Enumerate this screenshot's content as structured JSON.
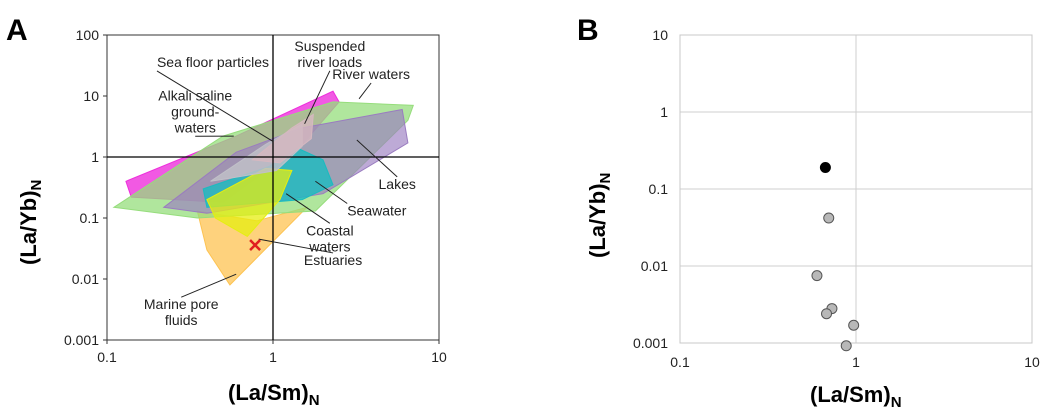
{
  "chart_data": [
    {
      "panel": "A",
      "type": "area",
      "xscale": "log",
      "yscale": "log",
      "xlim": [
        0.1,
        10
      ],
      "ylim": [
        0.001,
        100
      ],
      "xticks": [
        "0.1",
        "1",
        "10"
      ],
      "yticks": [
        "0.001",
        "0.01",
        "0.1",
        "1",
        "10",
        "100"
      ],
      "xlabel": "(La/Sm)N",
      "xlabel_main": "(La/Sm)",
      "xlabel_sub": "N",
      "ylabel": "(La/Yb)N",
      "ylabel_main": "(La/Yb)",
      "ylabel_sub": "N",
      "reference_lines": {
        "x": 1,
        "y": 1
      },
      "fields": [
        {
          "name": "Marine pore fluids",
          "color": "#fdc352",
          "opacity": 0.75,
          "points": [
            [
              0.35,
              0.13
            ],
            [
              0.8,
              0.09
            ],
            [
              1.6,
              0.15
            ],
            [
              0.55,
              0.008
            ],
            [
              0.4,
              0.03
            ]
          ]
        },
        {
          "name": "Alkali saline groundwaters",
          "color": "#ee2fdc",
          "opacity": 0.8,
          "points": [
            [
              0.13,
              0.4
            ],
            [
              0.6,
              2.2
            ],
            [
              2.3,
              12
            ],
            [
              2.5,
              8
            ],
            [
              1.5,
              1.6
            ],
            [
              0.5,
              0.18
            ],
            [
              0.14,
              0.22
            ]
          ]
        },
        {
          "name": "River waters",
          "color": "#96dd7c",
          "opacity": 0.75,
          "points": [
            [
              0.11,
              0.15
            ],
            [
              0.5,
              2.2
            ],
            [
              2.3,
              8
            ],
            [
              7,
              7
            ],
            [
              6.5,
              4
            ],
            [
              1.8,
              0.13
            ],
            [
              0.35,
              0.1
            ]
          ]
        },
        {
          "name": "Lakes",
          "color": "#9a7cc0",
          "opacity": 0.65,
          "points": [
            [
              0.22,
              0.15
            ],
            [
              0.6,
              1.2
            ],
            [
              1.5,
              3
            ],
            [
              6,
              6
            ],
            [
              6.5,
              1.7
            ],
            [
              2,
              0.25
            ],
            [
              0.4,
              0.12
            ]
          ]
        },
        {
          "name": "Seawater",
          "color": "#1abbc0",
          "opacity": 0.8,
          "points": [
            [
              0.38,
              0.3
            ],
            [
              0.95,
              0.7
            ],
            [
              1.4,
              1.4
            ],
            [
              2,
              0.9
            ],
            [
              2.3,
              0.35
            ],
            [
              1.5,
              0.2
            ],
            [
              0.4,
              0.15
            ]
          ]
        },
        {
          "name": "Coastal waters",
          "color": "#e5ee10",
          "opacity": 0.75,
          "points": [
            [
              0.4,
              0.2
            ],
            [
              0.9,
              0.65
            ],
            [
              1.3,
              0.6
            ],
            [
              1.1,
              0.2
            ],
            [
              0.7,
              0.05
            ],
            [
              0.45,
              0.1
            ]
          ]
        },
        {
          "name": "Sea floor particles",
          "color": "#c0c0c8",
          "opacity": 0.85,
          "points": [
            [
              0.42,
              0.4
            ],
            [
              0.9,
              1.6
            ],
            [
              1.5,
              3.5
            ],
            [
              1.5,
              1.5
            ],
            [
              1.05,
              0.6
            ],
            [
              0.55,
              0.45
            ]
          ]
        },
        {
          "name": "Suspended river loads",
          "color": "#d6b8c0",
          "opacity": 0.8,
          "points": [
            [
              0.75,
              0.9
            ],
            [
              1.3,
              3
            ],
            [
              1.75,
              5
            ],
            [
              1.7,
              2
            ],
            [
              1.1,
              0.8
            ]
          ]
        }
      ],
      "marker": {
        "type": "x",
        "color": "#e02020",
        "x": 0.78,
        "y": 0.036
      },
      "annotations": [
        {
          "lines": [
            "Sea floor particles"
          ],
          "pos": [
            0.2,
            30
          ],
          "anchor": "start",
          "arrow_to": [
            1.0,
            1.8
          ]
        },
        {
          "lines": [
            "Suspended",
            "river loads"
          ],
          "pos": [
            2.2,
            55
          ],
          "anchor": "middle",
          "arrow_to": [
            1.55,
            3.5
          ]
        },
        {
          "lines": [
            "River waters"
          ],
          "pos": [
            3.9,
            19
          ],
          "anchor": "middle",
          "arrow_to": [
            3.3,
            9
          ]
        },
        {
          "lines": [
            "Alkali saline",
            "ground-",
            "waters"
          ],
          "pos": [
            0.34,
            8.5
          ],
          "anchor": "middle",
          "arrow_to": [
            0.58,
            2.2
          ]
        },
        {
          "lines": [
            "Lakes"
          ],
          "pos": [
            5.6,
            0.3
          ],
          "anchor": "middle",
          "arrow_to": [
            3.2,
            1.9
          ]
        },
        {
          "lines": [
            "Seawater"
          ],
          "pos": [
            2.8,
            0.11
          ],
          "anchor": "start",
          "arrow_to": [
            1.8,
            0.4
          ]
        },
        {
          "lines": [
            "Coastal",
            "waters"
          ],
          "pos": [
            2.2,
            0.052
          ],
          "anchor": "middle",
          "arrow_to": [
            1.2,
            0.25
          ]
        },
        {
          "lines": [
            "Estuaries"
          ],
          "pos": [
            2.3,
            0.017
          ],
          "anchor": "middle",
          "arrow_to": [
            0.82,
            0.045
          ]
        },
        {
          "lines": [
            "Marine pore",
            "fluids"
          ],
          "pos": [
            0.28,
            0.0032
          ],
          "anchor": "middle",
          "arrow_to": [
            0.6,
            0.012
          ]
        }
      ]
    },
    {
      "panel": "B",
      "type": "scatter",
      "xscale": "log",
      "yscale": "log",
      "xlim": [
        0.1,
        10
      ],
      "ylim": [
        0.001,
        10
      ],
      "xticks": [
        "0.1",
        "1",
        "10"
      ],
      "yticks": [
        "0.001",
        "0.01",
        "0.1",
        "1",
        "10"
      ],
      "xlabel": "(La/Sm)N",
      "xlabel_main": "(La/Sm)",
      "xlabel_sub": "N",
      "ylabel": "(La/Yb)N",
      "ylabel_main": "(La/Yb)",
      "ylabel_sub": "N",
      "grid": true,
      "series": [
        {
          "color": "#000000",
          "points": [
            [
              0.67,
              0.19
            ]
          ]
        },
        {
          "color": "#b8b8b8",
          "points": [
            [
              0.7,
              0.042
            ],
            [
              0.6,
              0.0075
            ],
            [
              0.73,
              0.0028
            ],
            [
              0.68,
              0.0024
            ],
            [
              0.97,
              0.0017
            ],
            [
              0.88,
              0.00092
            ]
          ]
        }
      ]
    }
  ]
}
